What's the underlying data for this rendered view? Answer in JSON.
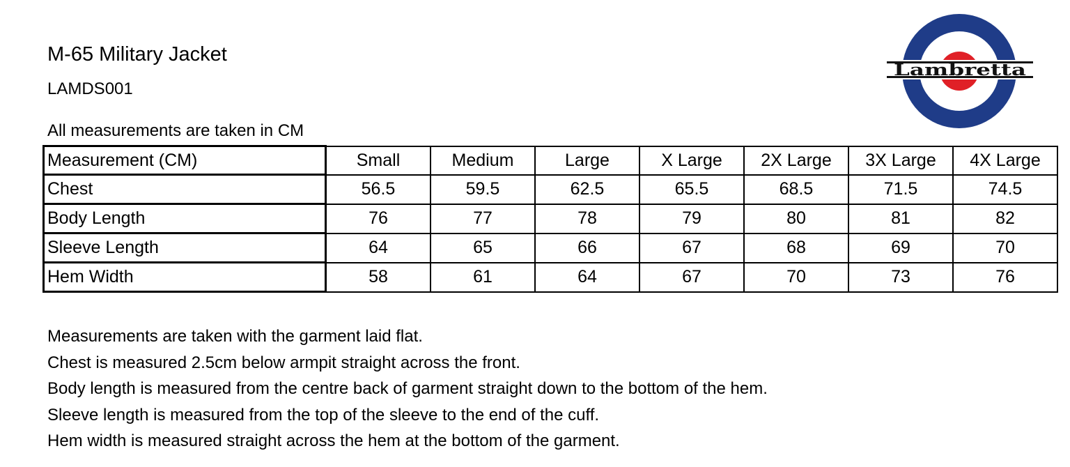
{
  "header": {
    "title": "M-65 Military Jacket",
    "product_code": "LAMDS001",
    "units_note": "All measurements are taken in CM"
  },
  "logo": {
    "text": "Lambretta",
    "colors": {
      "ring": "#1f3c88",
      "center": "#e02027",
      "text": "#111111"
    }
  },
  "table": {
    "headers": [
      "Measurement (CM)",
      "Small",
      "Medium",
      "Large",
      "X Large",
      "2X Large",
      "3X Large",
      "4X Large"
    ],
    "rows": [
      [
        "Chest",
        "56.5",
        "59.5",
        "62.5",
        "65.5",
        "68.5",
        "71.5",
        "74.5"
      ],
      [
        "Body Length",
        "76",
        "77",
        "78",
        "79",
        "80",
        "81",
        "82"
      ],
      [
        "Sleeve Length",
        "64",
        "65",
        "66",
        "67",
        "68",
        "69",
        "70"
      ],
      [
        "Hem Width",
        "58",
        "61",
        "64",
        "67",
        "70",
        "73",
        "76"
      ]
    ]
  },
  "notes": [
    "Measurements are taken with the garment laid flat.",
    "Chest is measured 2.5cm below armpit straight across the front.",
    "Body length is measured from the centre back of garment straight down to the bottom of the hem.",
    "Sleeve length is measured from the top of the sleeve to the end of the cuff.",
    "Hem width is measured straight across the hem at the bottom of the garment."
  ]
}
